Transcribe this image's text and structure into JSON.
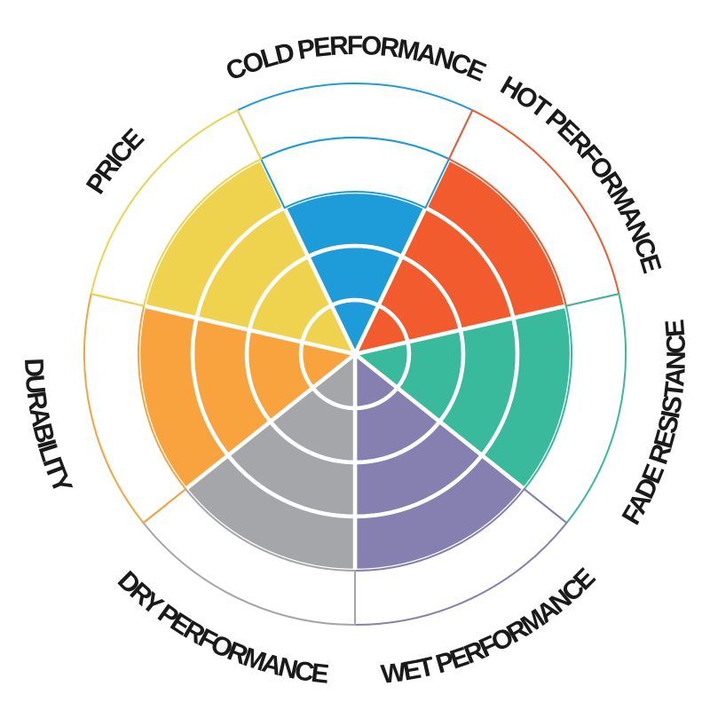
{
  "background_color": "#ffffff",
  "label_text_color": "#1a1a1a",
  "chart_data": {
    "type": "polar-sector-rating (coxcomb / wheel chart)",
    "description_visible_text_only": "Seven equal pie sectors around a circle, each filled from the center outward to its rating level out of 5 concentric rings; unfilled rings are outlined in the sector color.",
    "scale": {
      "rings": 5,
      "min": 0,
      "max": 5
    },
    "order": "clockwise starting at top",
    "legend": "none",
    "grid": "white separators inside filled wedges; colored thin outlines on empty rings",
    "categories": [
      {
        "label": "COLD PERFORMANCE",
        "value": 3,
        "color": "#1E9CD9"
      },
      {
        "label": "HOT PERFORMANCE",
        "value": 4,
        "color": "#F15B2D"
      },
      {
        "label": "FADE RESISTANCE",
        "value": 4,
        "color": "#39BA9D"
      },
      {
        "label": "WET PERFORMANCE",
        "value": 4,
        "color": "#8680B0"
      },
      {
        "label": "DRY PERFORMANCE",
        "value": 4,
        "color": "#A5A6A9"
      },
      {
        "label": "DURABILITY",
        "value": 4,
        "color": "#F8A33D"
      },
      {
        "label": "PRICE",
        "value": 4,
        "color": "#EFD24D"
      }
    ]
  }
}
